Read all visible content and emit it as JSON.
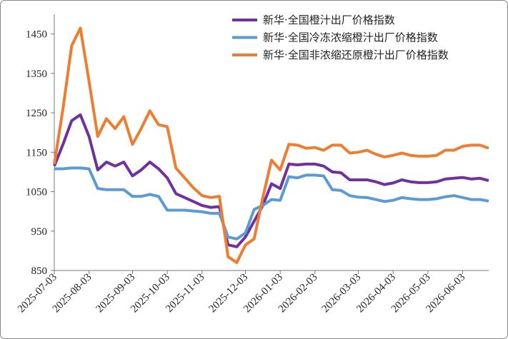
{
  "chart_data": {
    "type": "line",
    "categories": [
      "2025-07-03",
      null,
      null,
      null,
      "2025-08-03",
      null,
      null,
      null,
      null,
      "2025-09-03",
      null,
      null,
      null,
      "2025-10-03",
      null,
      null,
      null,
      "2025-11-03",
      null,
      null,
      null,
      null,
      "2025-12-03",
      null,
      null,
      null,
      "2026-01-03",
      null,
      null,
      null,
      "2026-02-03",
      null,
      null,
      null,
      null,
      "2026-03-03",
      null,
      null,
      null,
      "2026-04-03",
      null,
      null,
      null,
      "2026-05-03",
      null,
      null,
      null,
      "2026-06-03",
      null,
      null,
      null
    ],
    "series": [
      {
        "name": "新华·全国橙汁出厂价格指数",
        "color": "#7030a0",
        "values": [
          1115,
          1170,
          1230,
          1245,
          1190,
          1105,
          1125,
          1115,
          1125,
          1090,
          1105,
          1125,
          1108,
          1085,
          1045,
          1035,
          1025,
          1015,
          1010,
          1012,
          915,
          910,
          935,
          975,
          1015,
          1070,
          1058,
          1120,
          1118,
          1120,
          1120,
          1115,
          1100,
          1098,
          1080,
          1080,
          1080,
          1075,
          1068,
          1072,
          1080,
          1075,
          1073,
          1073,
          1075,
          1082,
          1084,
          1086,
          1082,
          1084,
          1078
        ]
      },
      {
        "name": "新华·全国冷冻浓缩橙汁出厂价格指数",
        "color": "#5b9bd5",
        "values": [
          1108,
          1108,
          1110,
          1110,
          1108,
          1058,
          1055,
          1055,
          1055,
          1038,
          1038,
          1043,
          1038,
          1003,
          1003,
          1003,
          1001,
          999,
          995,
          995,
          935,
          930,
          945,
          1005,
          1015,
          1030,
          1028,
          1088,
          1085,
          1092,
          1092,
          1090,
          1055,
          1053,
          1040,
          1036,
          1035,
          1030,
          1025,
          1028,
          1035,
          1032,
          1030,
          1030,
          1032,
          1037,
          1040,
          1035,
          1030,
          1030,
          1026
        ]
      },
      {
        "name": "新华·全国非浓缩还原橙汁出厂价格指数",
        "color": "#ed7d31",
        "values": [
          1120,
          1260,
          1420,
          1465,
          1330,
          1190,
          1235,
          1210,
          1240,
          1170,
          1210,
          1255,
          1220,
          1215,
          1110,
          1085,
          1060,
          1040,
          1035,
          1038,
          885,
          870,
          915,
          930,
          1035,
          1130,
          1105,
          1170,
          1168,
          1160,
          1162,
          1155,
          1168,
          1168,
          1148,
          1150,
          1155,
          1145,
          1138,
          1142,
          1148,
          1142,
          1140,
          1140,
          1142,
          1155,
          1155,
          1165,
          1168,
          1168,
          1160
        ]
      }
    ],
    "ylim": [
      850,
      1500
    ],
    "yticks": [
      850,
      950,
      1050,
      1150,
      1250,
      1350,
      1450
    ],
    "legend": "upper right"
  }
}
